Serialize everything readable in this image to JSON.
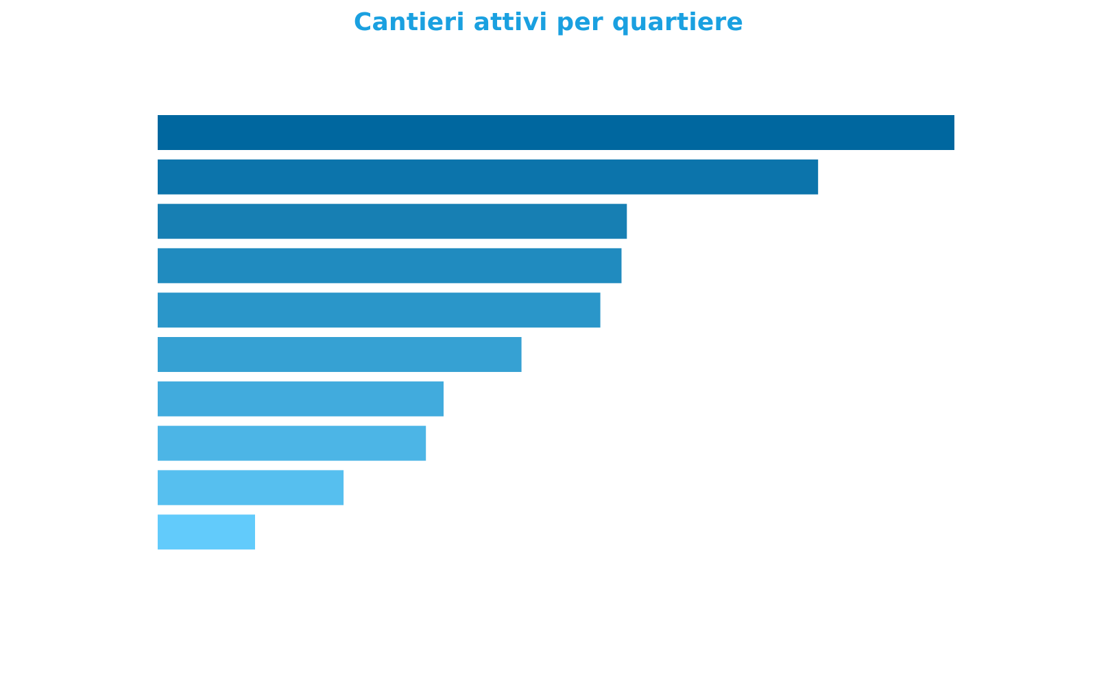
{
  "chart_data": {
    "type": "bar",
    "orientation": "horizontal",
    "title": "Cantieri attivi per quartiere",
    "xlabel": "",
    "ylabel": "",
    "categories": [
      "",
      "",
      "",
      "",
      "",
      "",
      "",
      "",
      "",
      ""
    ],
    "values": [
      900,
      746,
      530,
      524,
      500,
      411,
      323,
      303,
      210,
      110
    ],
    "xlim": [
      0,
      900
    ],
    "grid": false,
    "axes_visible": false,
    "colors": [
      "#00679f",
      "#0c74ab",
      "#177fb3",
      "#208bbf",
      "#2a96c9",
      "#36a1d3",
      "#41abdd",
      "#4cb5e6",
      "#56bfef",
      "#62cbfb"
    ]
  }
}
